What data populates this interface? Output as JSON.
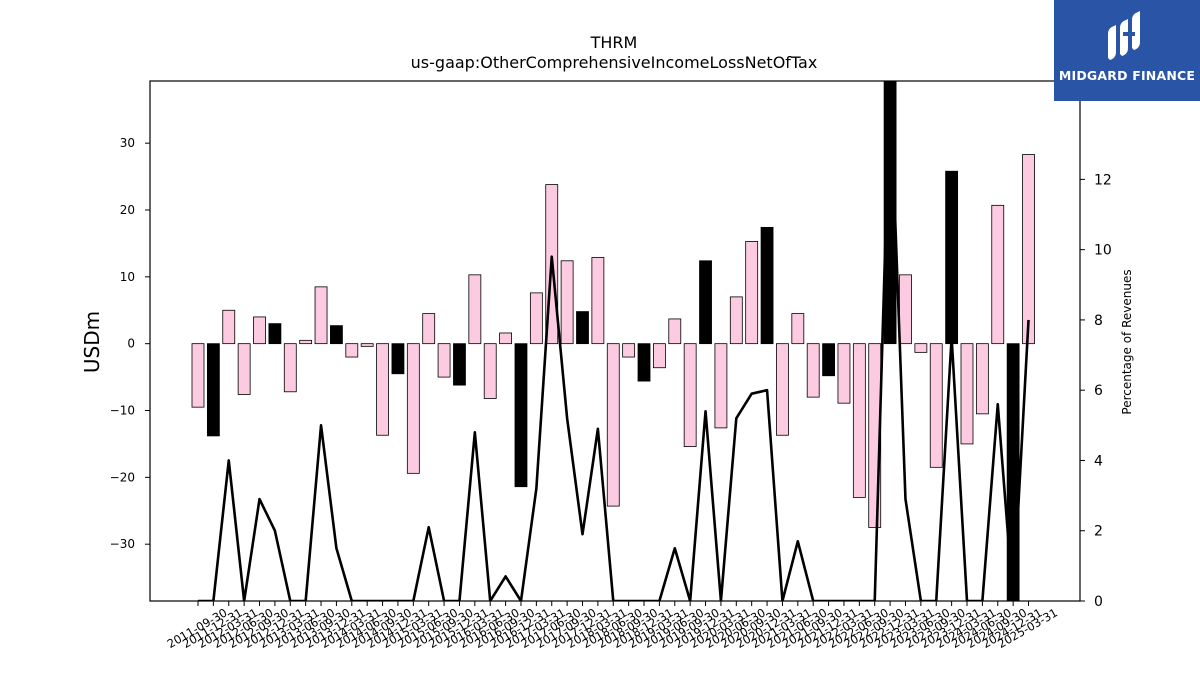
{
  "brand": {
    "name": "MIDGARD FINANCE",
    "logo_icon": "midgard-m-icon",
    "background": "#2a55a6"
  },
  "chart_data": {
    "type": "bar",
    "title": "THRM",
    "subtitle": "us-gaap:OtherComprehensiveIncomeLossNetOfTax",
    "ylabel": "USDm",
    "ylabel_right": "Percentage of Revenues",
    "ylim": [
      -38.5,
      39.3
    ],
    "yticks": [
      -30,
      -20,
      -10,
      0,
      10,
      20,
      30
    ],
    "ylim_right": [
      0,
      14.8
    ],
    "yticks_right": [
      0,
      2,
      4,
      6,
      8,
      10,
      12
    ],
    "colors": {
      "positive_pct": "#fccbe2",
      "bar_edge": "#000000",
      "highlight": "#000000",
      "line": "#000000"
    },
    "categories": [
      "2011-09-30",
      "2011-12-31",
      "2012-03-31",
      "2012-06-30",
      "2012-09-30",
      "2012-12-31",
      "2013-03-31",
      "2013-06-30",
      "2013-09-30",
      "2013-12-31",
      "2014-03-31",
      "2014-06-30",
      "2014-09-30",
      "2014-12-31",
      "2015-03-31",
      "2015-06-30",
      "2015-09-30",
      "2015-12-31",
      "2016-03-31",
      "2016-06-30",
      "2016-09-30",
      "2016-12-31",
      "2017-03-31",
      "2017-06-30",
      "2017-09-30",
      "2017-12-31",
      "2018-03-31",
      "2018-06-30",
      "2018-09-30",
      "2018-12-31",
      "2019-03-31",
      "2019-06-30",
      "2019-09-30",
      "2019-12-31",
      "2020-03-31",
      "2020-06-30",
      "2020-09-30",
      "2020-12-31",
      "2021-03-31",
      "2021-06-30",
      "2021-09-30",
      "2021-12-31",
      "2022-03-31",
      "2022-06-30",
      "2022-09-30",
      "2022-12-31",
      "2023-03-31",
      "2023-06-30",
      "2023-09-30",
      "2023-12-31",
      "2024-03-31",
      "2024-06-30",
      "2024-09-30",
      "2024-12-31",
      "2025-03-31"
    ],
    "series": [
      {
        "kind": "bar",
        "values": [
          -9.5,
          -13.8,
          5.0,
          -7.6,
          4.0,
          3.0,
          -7.2,
          0.5,
          8.5,
          2.7,
          -2.0,
          -0.4,
          -13.7,
          -4.5,
          -19.4,
          4.5,
          -5.0,
          -6.2,
          10.3,
          -8.2,
          1.6,
          -21.4,
          7.6,
          23.8,
          12.4,
          4.8,
          12.9,
          -24.3,
          -2.0,
          -5.6,
          -3.6,
          3.7,
          -15.4,
          12.4,
          -12.6,
          7.0,
          15.3,
          17.4,
          -13.7,
          4.5,
          -8.0,
          -4.8,
          -8.9,
          -23.0,
          -27.5,
          39.3,
          10.3,
          -1.3,
          -18.5,
          25.8,
          -15.0,
          -10.5,
          20.7,
          -38.5,
          28.3
        ],
        "highlight": [
          false,
          true,
          false,
          false,
          false,
          true,
          false,
          false,
          false,
          true,
          false,
          false,
          false,
          true,
          false,
          false,
          false,
          true,
          false,
          false,
          false,
          true,
          false,
          false,
          false,
          true,
          false,
          false,
          false,
          true,
          false,
          false,
          false,
          true,
          false,
          false,
          false,
          true,
          false,
          false,
          false,
          true,
          false,
          false,
          false,
          true,
          false,
          false,
          false,
          true,
          false,
          false,
          false,
          true,
          false
        ]
      },
      {
        "kind": "line",
        "axis": "right",
        "values": [
          0,
          0,
          4.0,
          0,
          2.9,
          2.0,
          0,
          0,
          5.0,
          1.5,
          0,
          0,
          0,
          0,
          0,
          2.1,
          0,
          0,
          4.8,
          0,
          0.7,
          0,
          3.2,
          9.8,
          5.2,
          1.9,
          4.9,
          0,
          0,
          0,
          0,
          1.5,
          0,
          5.4,
          0,
          5.2,
          5.9,
          6.0,
          0,
          1.7,
          0,
          0,
          0,
          0,
          0,
          14.8,
          2.9,
          0,
          0,
          7.5,
          0,
          0,
          5.6,
          0,
          8.0
        ]
      }
    ]
  }
}
